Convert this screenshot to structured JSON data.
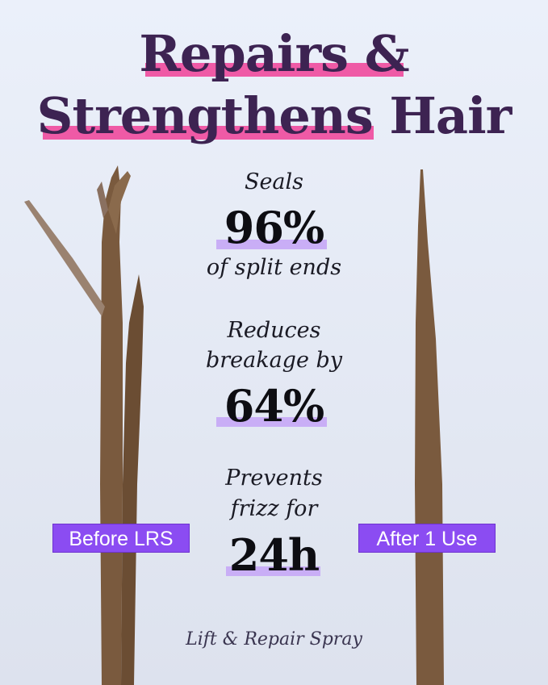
{
  "title": {
    "line1": "Repairs &",
    "line2": "Strengthens Hair"
  },
  "stats": [
    {
      "pre": "Seals",
      "value": "96%",
      "post": "of split ends"
    },
    {
      "pre1": "Reduces",
      "pre2": "breakage by",
      "value": "64%"
    },
    {
      "pre1": "Prevents",
      "pre2": "frizz for",
      "value": "24h"
    }
  ],
  "labels": {
    "before": "Before LRS",
    "after": "After 1 Use"
  },
  "footer": "Lift & Repair Spray",
  "colors": {
    "title": "#3d2352",
    "highlight_pink": "#ef5aa6",
    "highlight_lavender": "#c9aef6",
    "tag": "#8b4cf2"
  }
}
